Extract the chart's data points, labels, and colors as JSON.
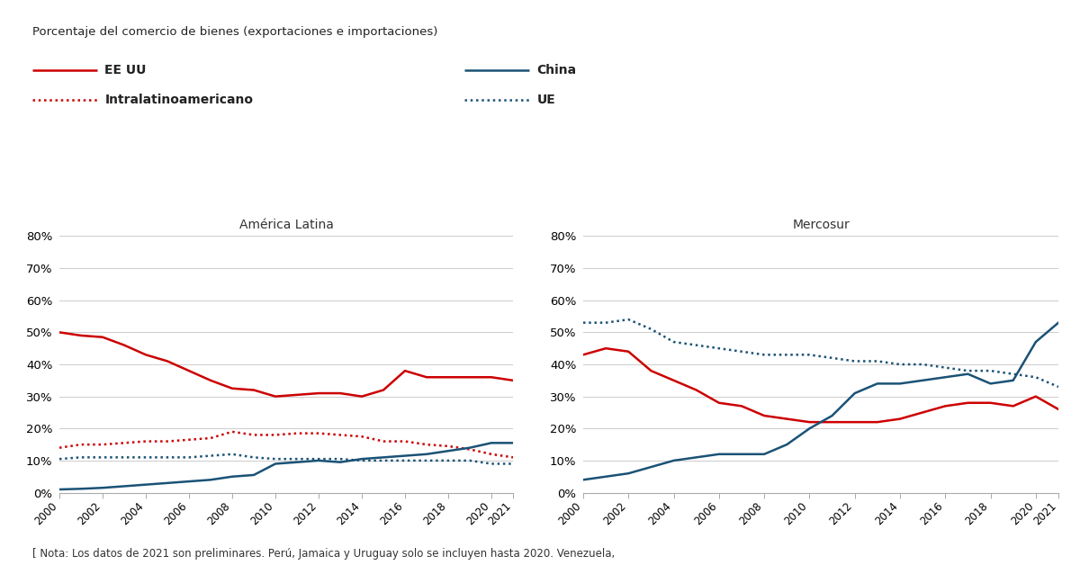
{
  "subtitle": "Porcentaje del comercio de bienes (exportaciones e importaciones)",
  "note": "[ Nota: Los datos de 2021 son preliminares. Perú, Jamaica y Uruguay solo se incluyen hasta 2020. Venezuela,",
  "panel_left_title": "América Latina",
  "panel_right_title": "Mercosur",
  "years": [
    2000,
    2001,
    2002,
    2003,
    2004,
    2005,
    2006,
    2007,
    2008,
    2009,
    2010,
    2011,
    2012,
    2013,
    2014,
    2015,
    2016,
    2017,
    2018,
    2019,
    2020,
    2021
  ],
  "al_eeuu": [
    50,
    49,
    48.5,
    46,
    43,
    41,
    38,
    35,
    32.5,
    32,
    30,
    30.5,
    31,
    31,
    30,
    32,
    38,
    36,
    36,
    36,
    36,
    35
  ],
  "al_intra": [
    14,
    15,
    15,
    15.5,
    16,
    16,
    16.5,
    17,
    19,
    18,
    18,
    18.5,
    18.5,
    18,
    17.5,
    16,
    16,
    15,
    14.5,
    13.5,
    12,
    11
  ],
  "al_china": [
    1,
    1.2,
    1.5,
    2,
    2.5,
    3,
    3.5,
    4,
    5,
    5.5,
    9,
    9.5,
    10,
    9.5,
    10.5,
    11,
    11.5,
    12,
    13,
    14,
    15.5,
    15.5
  ],
  "al_ue": [
    10.5,
    11,
    11,
    11,
    11,
    11,
    11,
    11.5,
    12,
    11,
    10.5,
    10.5,
    10.5,
    10.5,
    10,
    10,
    10,
    10,
    10,
    10,
    9,
    9
  ],
  "ms_eeuu": [
    43,
    45,
    44,
    38,
    35,
    32,
    28,
    27,
    24,
    23,
    22,
    22,
    22,
    22,
    23,
    25,
    27,
    28,
    28,
    27,
    30,
    26
  ],
  "ms_ue": [
    53,
    53,
    54,
    51,
    47,
    46,
    45,
    44,
    43,
    43,
    43,
    42,
    41,
    41,
    40,
    40,
    39,
    38,
    38,
    37,
    36,
    33
  ],
  "ms_china": [
    4,
    5,
    6,
    8,
    10,
    11,
    12,
    12,
    12,
    15,
    20,
    24,
    31,
    34,
    34,
    35,
    36,
    37,
    34,
    35,
    47,
    53
  ],
  "red_color": "#cc0000",
  "blue_color": "#1a5276",
  "background_color": "#ffffff",
  "grid_color": "#cccccc",
  "ylim": [
    0,
    80
  ],
  "yticks": [
    0,
    10,
    20,
    30,
    40,
    50,
    60,
    70,
    80
  ],
  "xtick_years": [
    2000,
    2002,
    2004,
    2006,
    2008,
    2010,
    2012,
    2014,
    2016,
    2018,
    2020,
    2021
  ]
}
